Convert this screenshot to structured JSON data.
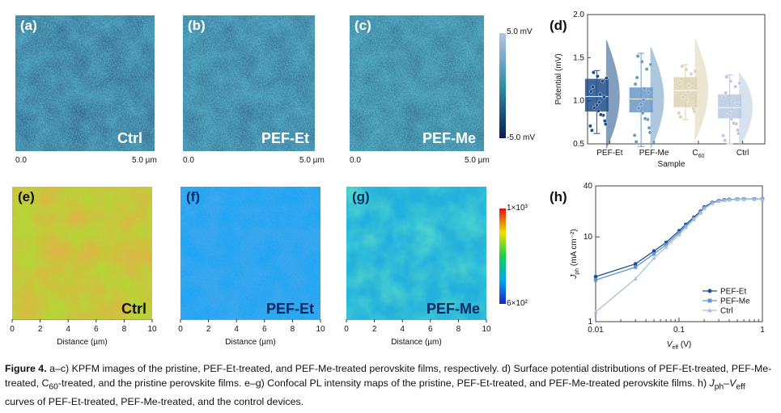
{
  "kpfm": {
    "panels": [
      {
        "letter": "(a)",
        "label": "Ctrl"
      },
      {
        "letter": "(b)",
        "label": "PEF-Et"
      },
      {
        "letter": "(c)",
        "label": "PEF-Me"
      }
    ],
    "scale_start": "0.0",
    "scale_end": "5.0 µm",
    "colorbar_top": "5.0 mV",
    "colorbar_bottom": "-5.0 mV",
    "colors": {
      "low": "#0a2a66",
      "mid": "#2f8fa6",
      "high": "#a7d9e0"
    }
  },
  "pl": {
    "panels": [
      {
        "letter": "(e)",
        "label": "Ctrl"
      },
      {
        "letter": "(f)",
        "label": "PEF-Et"
      },
      {
        "letter": "(g)",
        "label": "PEF-Me"
      }
    ],
    "ticks": [
      "0",
      "2",
      "4",
      "6",
      "8",
      "10"
    ],
    "xlabel": "Distance (µm)",
    "colorbar_top": "1×10³",
    "colorbar_bottom": "6×10²"
  },
  "chart_data": [
    {
      "letter": "(d)",
      "type": "box",
      "title": "",
      "xlabel": "Sample",
      "ylabel": "Potential (mV)",
      "ylim": [
        0.5,
        2.0
      ],
      "yticks": [
        "0.5",
        "1.0",
        "1.5",
        "2.0"
      ],
      "categories": [
        "PEF-Et",
        "PEF-Me",
        "C60",
        "Ctrl"
      ],
      "category_base": [
        "PEF-Et",
        "PEF-Me",
        "C",
        "Ctrl"
      ],
      "category_sub": [
        "",
        "",
        "60",
        ""
      ],
      "colors": [
        "#1f4f8a",
        "#6b9ac6",
        "#ddd3b4",
        "#b9c9e3"
      ],
      "boxes": [
        {
          "q1": 0.88,
          "median": 1.05,
          "q3": 1.25,
          "min": 0.62,
          "max": 1.35,
          "mean": 1.05,
          "violin_min": 0.45,
          "violin_max": 1.7
        },
        {
          "q1": 0.87,
          "median": 1.02,
          "q3": 1.15,
          "min": 0.47,
          "max": 1.55,
          "mean": 1.0,
          "violin_min": 0.45,
          "violin_max": 1.62
        },
        {
          "q1": 0.93,
          "median": 1.12,
          "q3": 1.27,
          "min": 0.78,
          "max": 1.42,
          "mean": 1.1,
          "violin_min": 0.55,
          "violin_max": 1.72
        },
        {
          "q1": 0.8,
          "median": 0.92,
          "q3": 1.07,
          "min": 0.5,
          "max": 1.3,
          "mean": 0.92,
          "violin_min": 0.48,
          "violin_max": 1.32
        }
      ]
    },
    {
      "letter": "(h)",
      "type": "line",
      "title": "",
      "xlabel": "V_eff (V)",
      "ylabel": "J_ph (mA cm⁻²)",
      "xscale": "log",
      "yscale": "log",
      "xlim": [
        0.01,
        1
      ],
      "ylim": [
        1,
        40
      ],
      "xticks": [
        {
          "v": 0.01,
          "t": "0.01"
        },
        {
          "v": 0.1,
          "t": "0.1"
        },
        {
          "v": 1,
          "t": "1"
        }
      ],
      "yticks": [
        {
          "v": 1,
          "t": "1"
        },
        {
          "v": 10,
          "t": "10"
        },
        {
          "v": 40,
          "t": "40"
        }
      ],
      "legend_position": "bottom-right",
      "series": [
        {
          "name": "PEF-Et",
          "color": "#1f4f8a",
          "marker": "circle",
          "x": [
            0.01,
            0.03,
            0.05,
            0.07,
            0.1,
            0.12,
            0.15,
            0.18,
            0.2,
            0.25,
            0.3,
            0.35,
            0.4,
            0.5,
            0.6,
            0.8,
            1.0
          ],
          "y": [
            3.4,
            4.8,
            6.8,
            8.6,
            11.8,
            14.0,
            17.0,
            20.0,
            22.5,
            25.5,
            26.8,
            27.4,
            27.7,
            27.9,
            28.0,
            28.0,
            28.0
          ]
        },
        {
          "name": "PEF-Me",
          "color": "#5c97cf",
          "marker": "square",
          "x": [
            0.01,
            0.03,
            0.05,
            0.07,
            0.1,
            0.12,
            0.15,
            0.18,
            0.2,
            0.25,
            0.3,
            0.35,
            0.4,
            0.5,
            0.6,
            0.8,
            1.0
          ],
          "y": [
            3.1,
            4.4,
            6.3,
            8.1,
            11.2,
            13.4,
            16.5,
            19.5,
            22.0,
            25.2,
            26.6,
            27.2,
            27.5,
            27.8,
            27.9,
            27.9,
            27.9
          ]
        },
        {
          "name": "Ctrl",
          "color": "#a9c0dc",
          "marker": "triangle",
          "x": [
            0.01,
            0.03,
            0.05,
            0.07,
            0.1,
            0.12,
            0.15,
            0.18,
            0.2,
            0.25,
            0.3,
            0.35,
            0.4,
            0.5,
            0.6,
            0.8,
            1.0
          ],
          "y": [
            1.3,
            3.2,
            5.6,
            7.6,
            10.6,
            12.9,
            16.0,
            19.0,
            21.5,
            24.8,
            26.3,
            27.0,
            27.4,
            27.7,
            27.8,
            27.8,
            27.8
          ]
        }
      ]
    }
  ],
  "caption": {
    "label": "Figure 4.",
    "part1": " a–c) KPFM images of the pristine, PEF-Et-treated, and PEF-Me-treated perovskite films, respectively. d) Surface potential distributions of PEF-Et-treated, PEF-Me-treated, C",
    "sub1": "60",
    "part2": "-treated, and the pristine perovskite films. e–g) Confocal PL intensity maps of the pristine, PEF-Et-treated, and PEF-Me-treated perovskite films. h) ",
    "j": "J",
    "jsub": "ph",
    "dash": "–",
    "v": "V",
    "vsub": "eff",
    "part3": " curves of PEF-Et-treated, PEF-Me-treated, and the control devices."
  }
}
